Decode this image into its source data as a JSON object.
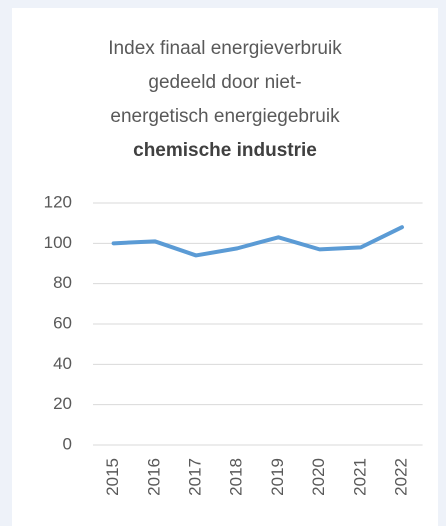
{
  "chart_data": {
    "type": "line",
    "title": [
      "Index finaal energieverbruik",
      "gedeeld door niet-",
      "energetisch energiegebruik"
    ],
    "subtitle": "chemische industrie",
    "categories": [
      "2015",
      "2016",
      "2017",
      "2018",
      "2019",
      "2020",
      "2021",
      "2022"
    ],
    "values": [
      100,
      101,
      94,
      97.5,
      103,
      97,
      98,
      108
    ],
    "color": "#5b9bd5",
    "ylim": [
      0,
      120
    ],
    "yticks": [
      0,
      20,
      40,
      60,
      80,
      100,
      120
    ],
    "grid": true
  }
}
